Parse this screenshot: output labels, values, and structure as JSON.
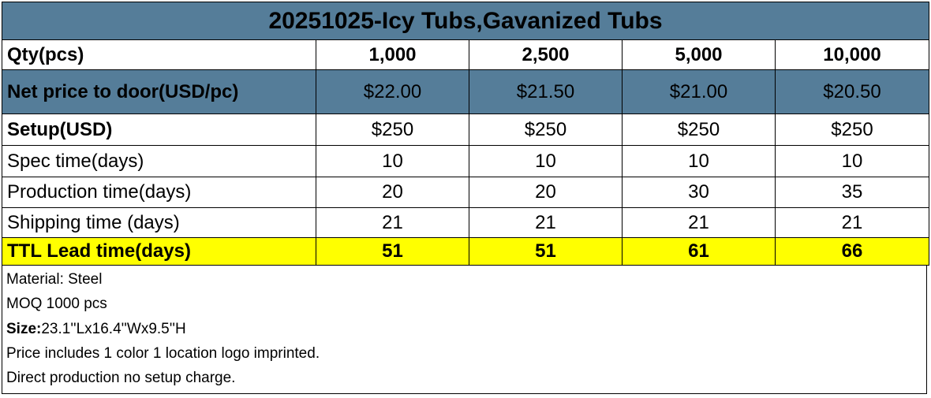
{
  "title": "20251025-Icy Tubs,Gavanized Tubs",
  "rows": [
    {
      "label": "Qty(pcs)",
      "values": [
        "1,000",
        "2,500",
        "5,000",
        "10,000"
      ]
    },
    {
      "label": "Net price to door(USD/pc)",
      "values": [
        "$22.00",
        "$21.50",
        "$21.00",
        "$20.50"
      ]
    },
    {
      "label": "Setup(USD)",
      "values": [
        "$250",
        "$250",
        "$250",
        "$250"
      ]
    },
    {
      "label": "Spec time(days)",
      "values": [
        "10",
        "10",
        "10",
        "10"
      ]
    },
    {
      "label": "Production time(days)",
      "values": [
        "20",
        "20",
        "30",
        "35"
      ]
    },
    {
      "label": "Shipping time (days)",
      "values": [
        "21",
        "21",
        "21",
        "21"
      ]
    },
    {
      "label": "TTL Lead time(days)",
      "values": [
        "51",
        "51",
        "61",
        "66"
      ]
    }
  ],
  "notes": {
    "material": "Material: Steel",
    "moq": "MOQ 1000 pcs",
    "size_label": "Size:",
    "size_value": "23.1''Lx16.4''Wx9.5''H",
    "price_note": "Price includes 1 color 1 location logo imprinted.",
    "setup_note": "Direct production no setup charge."
  },
  "colors": {
    "header": "#557d99",
    "highlight": "#ffff00"
  }
}
